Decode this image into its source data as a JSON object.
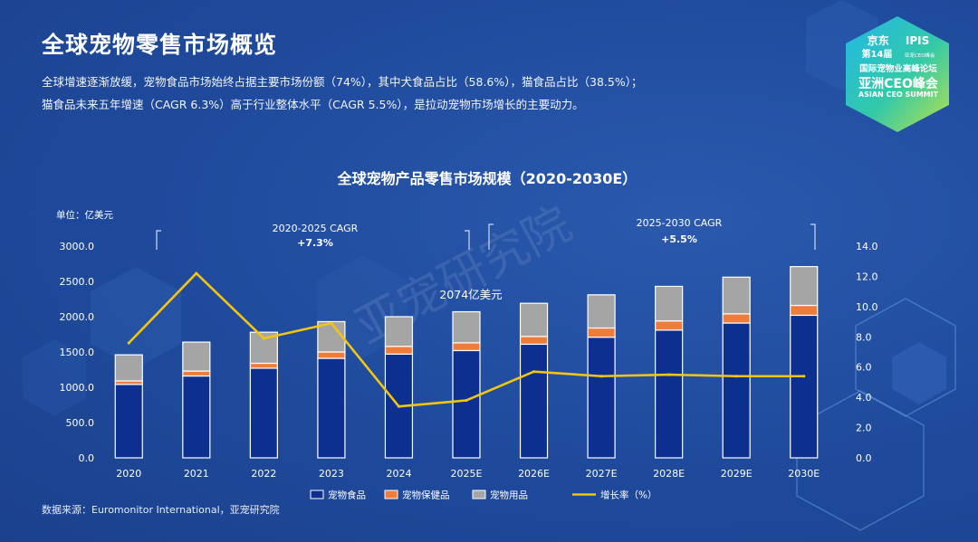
{
  "header": {
    "title": "全球宠物零售市场概览",
    "desc_line1": "全球增速逐渐放缓，宠物食品市场始终占据主要市场份额（74%），其中犬食品占比（58.6%），猫食品占比（38.5%）；",
    "desc_line2": "猫食品未来五年增速（CAGR 6.3%）高于行业整体水平（CAGR 5.5%），是拉动宠物市场增长的主要动力。"
  },
  "logo": {
    "brand": "京东",
    "session": "第14届",
    "org": "IPIS",
    "org_sub": "亚宠CEO峰会",
    "forum": "国际宠物业高峰论坛",
    "summit_cn": "亚洲CEO峰会",
    "summit_en": "ASIAN CEO SUMMIT"
  },
  "watermark": "亚宠研究院",
  "source": "数据来源：Euromonitor International，亚宠研究院",
  "colors": {
    "food": "#0d2f8f",
    "health": "#ee7d3b",
    "supplies": "#a5a5a5",
    "growth": "#f2c511",
    "background": "#1f4a9c"
  },
  "chart_data": {
    "type": "bar+line",
    "title": "全球宠物产品零售市场规模（2020-2030E）",
    "unit_label": "单位：亿美元",
    "categories": [
      "2020",
      "2021",
      "2022",
      "2023",
      "2024",
      "2025E",
      "2026E",
      "2027E",
      "2028E",
      "2029E",
      "2030E"
    ],
    "series": [
      {
        "name": "宠物食品",
        "kind": "bar",
        "axis": "left",
        "values": [
          1040,
          1160,
          1270,
          1410,
          1470,
          1520,
          1610,
          1710,
          1810,
          1910,
          2020
        ]
      },
      {
        "name": "宠物保健品",
        "kind": "bar",
        "axis": "left",
        "values": [
          50,
          70,
          70,
          90,
          110,
          110,
          110,
          130,
          130,
          130,
          140
        ]
      },
      {
        "name": "宠物用品",
        "kind": "bar",
        "axis": "left",
        "values": [
          370,
          410,
          440,
          430,
          420,
          440,
          470,
          470,
          490,
          520,
          550
        ]
      },
      {
        "name": "增长率（%）",
        "kind": "line",
        "axis": "right",
        "values": [
          7.6,
          12.2,
          7.9,
          8.9,
          3.4,
          3.8,
          5.7,
          5.4,
          5.5,
          5.4,
          5.4
        ]
      }
    ],
    "y_left": {
      "min": 0,
      "max": 3000,
      "ticks": [
        "0.0",
        "500.0",
        "1000.0",
        "1500.0",
        "2000.0",
        "2500.0",
        "3000.0"
      ]
    },
    "y_right": {
      "min": 0,
      "max": 14,
      "ticks": [
        "0.0",
        "2.0",
        "4.0",
        "6.0",
        "8.0",
        "10.0",
        "12.0",
        "14.0"
      ]
    },
    "annotations": [
      {
        "label": "2020-2025 CAGR",
        "value": "+7.3%"
      },
      {
        "label": "2025-2030 CAGR",
        "value": "+5.5%"
      },
      {
        "label": "2074亿美元"
      }
    ],
    "legend": [
      "宠物食品",
      "宠物保健品",
      "宠物用品",
      "增长率（%）"
    ],
    "legend_position": "bottom"
  }
}
